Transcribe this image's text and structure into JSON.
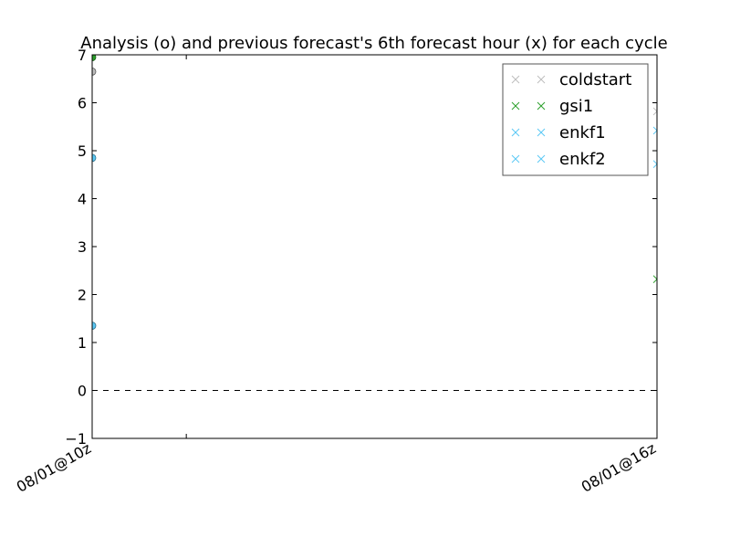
{
  "chart_data": {
    "type": "scatter",
    "title": "Analysis (o) and previous forecast's 6th forecast hour (x) for each cycle",
    "xlabel": "",
    "ylabel": "",
    "x_categories": [
      "08/01@10z",
      "",
      "08/01@16z"
    ],
    "x_range": [
      0,
      6
    ],
    "x_tick_positions": [
      0,
      1,
      6
    ],
    "ylim": [
      -1,
      7
    ],
    "y_ticks": [
      -1,
      0,
      1,
      2,
      3,
      4,
      5,
      6,
      7
    ],
    "y_tick_labels": [
      "−1",
      "0",
      "1",
      "2",
      "3",
      "4",
      "5",
      "6",
      "7"
    ],
    "grid": false,
    "reference_line": {
      "y": 0,
      "style": "dashed",
      "color": "#000000"
    },
    "legend_position": "top-right",
    "series": [
      {
        "name": "coldstart",
        "color": "#bdbdbd",
        "edge": "#555555",
        "analysis": [
          {
            "x": 0,
            "y": 6.65
          }
        ],
        "forecast": [
          {
            "x": 6,
            "y": 5.82
          }
        ]
      },
      {
        "name": "gsi1",
        "color": "#2ca02c",
        "edge": "#1a5e1a",
        "analysis": [
          {
            "x": 0,
            "y": 6.95
          }
        ],
        "forecast": [
          {
            "x": 6,
            "y": 2.32
          }
        ]
      },
      {
        "name": "enkf1",
        "color": "#5bc8f5",
        "edge": "#2a6f8a",
        "analysis": [
          {
            "x": 0,
            "y": 4.85
          }
        ],
        "forecast": [
          {
            "x": 6,
            "y": 5.42
          }
        ]
      },
      {
        "name": "enkf2",
        "color": "#5bc8f5",
        "edge": "#2a6f8a",
        "analysis": [
          {
            "x": 0,
            "y": 1.35
          }
        ],
        "forecast": [
          {
            "x": 6,
            "y": 4.72
          }
        ]
      }
    ]
  }
}
